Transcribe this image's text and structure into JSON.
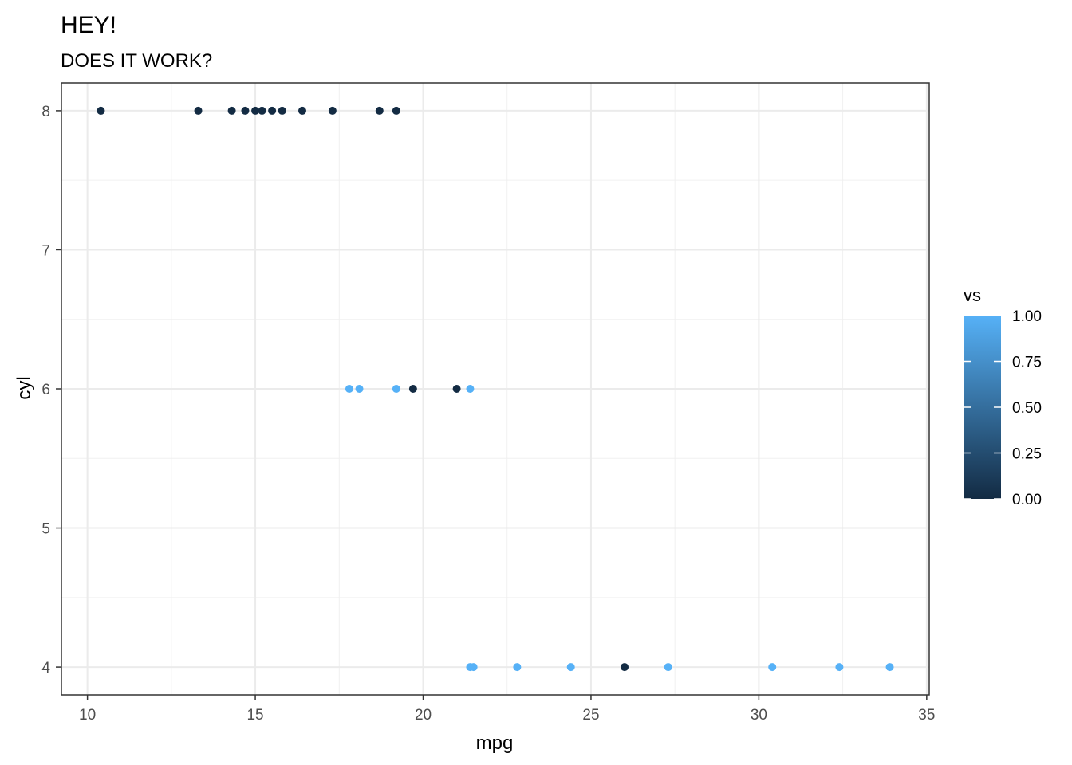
{
  "chart_data": {
    "type": "scatter",
    "title": "HEY!",
    "subtitle": "DOES IT WORK?",
    "xlabel": "mpg",
    "ylabel": "cyl",
    "xlim": [
      9.225,
      35.075
    ],
    "ylim": [
      3.8,
      8.2
    ],
    "x_ticks": [
      10,
      15,
      20,
      25,
      30,
      35
    ],
    "y_ticks": [
      4,
      5,
      6,
      7,
      8
    ],
    "x_tick_labels": [
      "10",
      "15",
      "20",
      "25",
      "30",
      "35"
    ],
    "y_tick_labels": [
      "4",
      "5",
      "6",
      "7",
      "8"
    ],
    "grid": true,
    "legend": {
      "title": "vs",
      "placement": "right",
      "type": "continuous-colorbar",
      "low_color": "#132B43",
      "high_color": "#56B1F7",
      "range": [
        0,
        1
      ],
      "breaks": [
        1.0,
        0.75,
        0.5,
        0.25,
        0.0
      ],
      "labels": [
        "1.00",
        "0.75",
        "0.50",
        "0.25",
        "0.00"
      ]
    },
    "points": [
      {
        "x": 10.4,
        "y": 8,
        "vs": 0
      },
      {
        "x": 13.3,
        "y": 8,
        "vs": 0
      },
      {
        "x": 14.3,
        "y": 8,
        "vs": 0
      },
      {
        "x": 14.7,
        "y": 8,
        "vs": 0
      },
      {
        "x": 15.0,
        "y": 8,
        "vs": 0
      },
      {
        "x": 15.2,
        "y": 8,
        "vs": 0
      },
      {
        "x": 15.5,
        "y": 8,
        "vs": 0
      },
      {
        "x": 15.8,
        "y": 8,
        "vs": 0
      },
      {
        "x": 16.4,
        "y": 8,
        "vs": 0
      },
      {
        "x": 17.3,
        "y": 8,
        "vs": 0
      },
      {
        "x": 18.7,
        "y": 8,
        "vs": 0
      },
      {
        "x": 19.2,
        "y": 8,
        "vs": 0
      },
      {
        "x": 17.8,
        "y": 6,
        "vs": 1
      },
      {
        "x": 18.1,
        "y": 6,
        "vs": 1
      },
      {
        "x": 19.2,
        "y": 6,
        "vs": 1
      },
      {
        "x": 19.7,
        "y": 6,
        "vs": 0
      },
      {
        "x": 21.0,
        "y": 6,
        "vs": 0
      },
      {
        "x": 21.4,
        "y": 6,
        "vs": 1
      },
      {
        "x": 21.4,
        "y": 4,
        "vs": 1
      },
      {
        "x": 21.5,
        "y": 4,
        "vs": 1
      },
      {
        "x": 22.8,
        "y": 4,
        "vs": 1
      },
      {
        "x": 24.4,
        "y": 4,
        "vs": 1
      },
      {
        "x": 26.0,
        "y": 4,
        "vs": 0
      },
      {
        "x": 27.3,
        "y": 4,
        "vs": 1
      },
      {
        "x": 30.4,
        "y": 4,
        "vs": 1
      },
      {
        "x": 32.4,
        "y": 4,
        "vs": 1
      },
      {
        "x": 33.9,
        "y": 4,
        "vs": 1
      }
    ]
  }
}
